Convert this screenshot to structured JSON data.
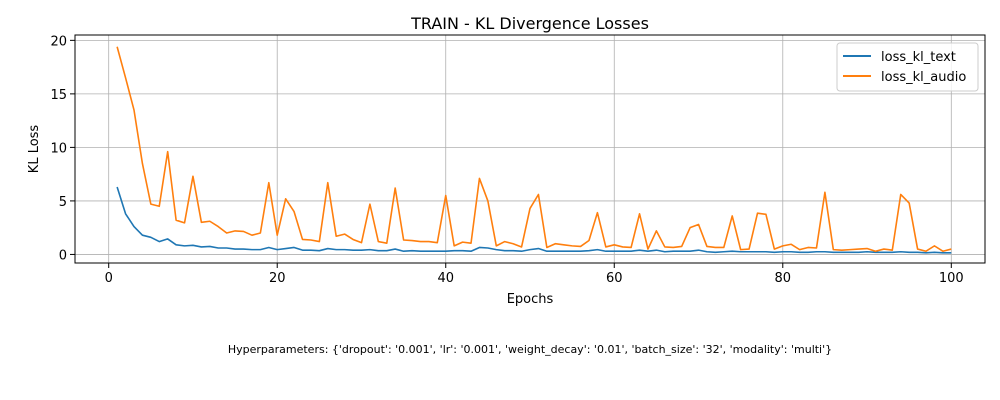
{
  "chart_data": {
    "type": "line",
    "title": "TRAIN - KL Divergence Losses",
    "xlabel": "Epochs",
    "ylabel": "KL Loss",
    "xlim": [
      -4,
      104
    ],
    "ylim": [
      -0.8,
      20.5
    ],
    "xticks": [
      0,
      20,
      40,
      60,
      80,
      100
    ],
    "yticks": [
      0,
      5,
      10,
      15,
      20
    ],
    "grid": true,
    "legend_position": "top-right",
    "x": [
      1,
      2,
      3,
      4,
      5,
      6,
      7,
      8,
      9,
      10,
      11,
      12,
      13,
      14,
      15,
      16,
      17,
      18,
      19,
      20,
      21,
      22,
      23,
      24,
      25,
      26,
      27,
      28,
      29,
      30,
      31,
      32,
      33,
      34,
      35,
      36,
      37,
      38,
      39,
      40,
      41,
      42,
      43,
      44,
      45,
      46,
      47,
      48,
      49,
      50,
      51,
      52,
      53,
      54,
      55,
      56,
      57,
      58,
      59,
      60,
      61,
      62,
      63,
      64,
      65,
      66,
      67,
      68,
      69,
      70,
      71,
      72,
      73,
      74,
      75,
      76,
      77,
      78,
      79,
      80,
      81,
      82,
      83,
      84,
      85,
      86,
      87,
      88,
      89,
      90,
      91,
      92,
      93,
      94,
      95,
      96,
      97,
      98,
      99,
      100
    ],
    "series": [
      {
        "name": "loss_kl_text",
        "color": "#1f77b4",
        "values": [
          6.3,
          3.8,
          2.6,
          1.8,
          1.6,
          1.2,
          1.45,
          0.9,
          0.8,
          0.85,
          0.7,
          0.75,
          0.6,
          0.6,
          0.5,
          0.5,
          0.45,
          0.45,
          0.65,
          0.45,
          0.55,
          0.65,
          0.4,
          0.4,
          0.35,
          0.55,
          0.45,
          0.45,
          0.4,
          0.4,
          0.45,
          0.35,
          0.35,
          0.5,
          0.3,
          0.35,
          0.3,
          0.3,
          0.3,
          0.3,
          0.35,
          0.35,
          0.3,
          0.65,
          0.6,
          0.45,
          0.35,
          0.35,
          0.3,
          0.45,
          0.55,
          0.3,
          0.3,
          0.3,
          0.3,
          0.3,
          0.35,
          0.45,
          0.3,
          0.3,
          0.3,
          0.3,
          0.4,
          0.3,
          0.4,
          0.25,
          0.3,
          0.3,
          0.3,
          0.4,
          0.25,
          0.2,
          0.25,
          0.3,
          0.25,
          0.25,
          0.25,
          0.25,
          0.2,
          0.25,
          0.25,
          0.2,
          0.2,
          0.25,
          0.25,
          0.2,
          0.2,
          0.2,
          0.2,
          0.25,
          0.2,
          0.2,
          0.2,
          0.25,
          0.2,
          0.2,
          0.15,
          0.2,
          0.15,
          0.15
        ]
      },
      {
        "name": "loss_kl_audio",
        "color": "#ff7f0e",
        "values": [
          19.4,
          16.5,
          13.5,
          8.5,
          4.7,
          4.5,
          9.6,
          3.2,
          2.95,
          7.3,
          3.0,
          3.1,
          2.6,
          2.0,
          2.2,
          2.15,
          1.8,
          2.0,
          6.7,
          1.8,
          5.2,
          4.0,
          1.4,
          1.35,
          1.2,
          6.7,
          1.7,
          1.9,
          1.4,
          1.1,
          4.7,
          1.2,
          1.05,
          6.2,
          1.35,
          1.3,
          1.2,
          1.2,
          1.1,
          5.5,
          0.8,
          1.15,
          1.05,
          7.1,
          5.0,
          0.8,
          1.2,
          1.0,
          0.7,
          4.3,
          5.6,
          0.65,
          1.0,
          0.9,
          0.8,
          0.75,
          1.3,
          3.9,
          0.7,
          0.9,
          0.7,
          0.65,
          3.8,
          0.5,
          2.2,
          0.7,
          0.65,
          0.75,
          2.5,
          2.8,
          0.75,
          0.65,
          0.65,
          3.6,
          0.45,
          0.5,
          3.85,
          3.75,
          0.5,
          0.8,
          0.95,
          0.45,
          0.65,
          0.6,
          5.8,
          0.45,
          0.4,
          0.45,
          0.5,
          0.55,
          0.3,
          0.5,
          0.4,
          5.6,
          4.8,
          0.5,
          0.3,
          0.8,
          0.3,
          0.5
        ]
      }
    ]
  },
  "footer_text": "Hyperparameters: {'dropout': '0.001', 'lr': '0.001', 'weight_decay': '0.01', 'batch_size': '32', 'modality': 'multi'}"
}
